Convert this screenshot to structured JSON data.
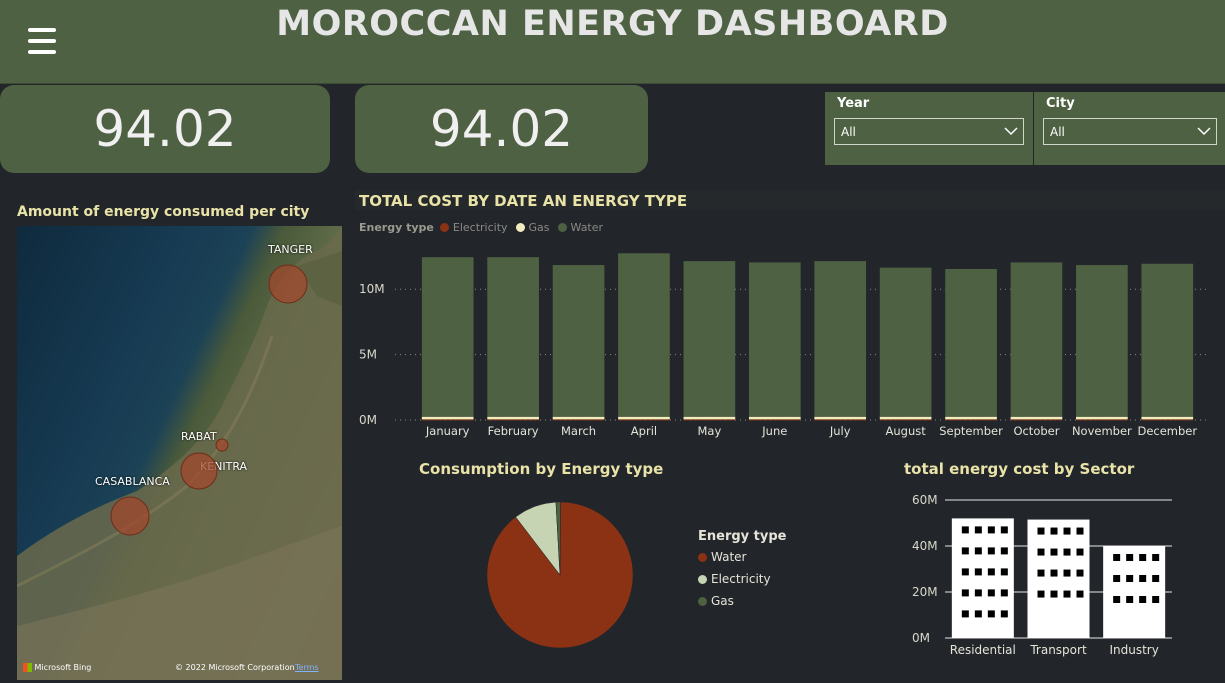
{
  "header": {
    "title": "MOROCCAN ENERGY DASHBOARD",
    "menu_icon": "hamburger-menu-icon"
  },
  "kpis": [
    {
      "value": "94.02"
    },
    {
      "value": "94.02"
    }
  ],
  "slicers": [
    {
      "label": "Year",
      "selected": "All"
    },
    {
      "label": "City",
      "selected": "All"
    }
  ],
  "map": {
    "title": "Amount of energy consumed per city",
    "cities": [
      "TANGER",
      "RABAT",
      "KENITRA",
      "CASABLANCA"
    ],
    "bubble_color": "#a0482c",
    "attribution": {
      "bing": "Microsoft Bing",
      "copyright": "© 2022 Microsoft Corporation",
      "terms": "Terms"
    }
  },
  "colors": {
    "header": "#4e6142",
    "water": "#4e6142",
    "electricity": "#8b3214",
    "gas": "#f1ecbd",
    "title_text": "#e9e3a8"
  },
  "chart_data": [
    {
      "type": "bar",
      "title": "TOTAL COST BY DATE AN ENERGY TYPE",
      "legend_title": "Energy type",
      "legend_placement": "top-left",
      "categories": [
        "January",
        "February",
        "March",
        "April",
        "May",
        "June",
        "July",
        "August",
        "September",
        "October",
        "November",
        "December"
      ],
      "series": [
        {
          "name": "Electricity",
          "color": "#8b3214",
          "values": [
            0.05,
            0.05,
            0.05,
            0.05,
            0.05,
            0.05,
            0.05,
            0.05,
            0.05,
            0.05,
            0.05,
            0.05
          ]
        },
        {
          "name": "Gas",
          "color": "#f1ecbd",
          "values": [
            0.2,
            0.2,
            0.2,
            0.2,
            0.2,
            0.2,
            0.2,
            0.2,
            0.2,
            0.2,
            0.2,
            0.2
          ]
        },
        {
          "name": "Water",
          "color": "#4e6142",
          "values": [
            12.2,
            12.2,
            11.6,
            12.5,
            11.9,
            11.8,
            11.9,
            11.4,
            11.3,
            11.8,
            11.6,
            11.7
          ]
        }
      ],
      "yticks": [
        "0M",
        "5M",
        "10M"
      ],
      "ylim": [
        0,
        13
      ],
      "grid": "dotted"
    },
    {
      "type": "pie",
      "title": "Consumption by Energy type",
      "legend_title": "Energy type",
      "legend_placement": "right",
      "labels": [
        "Water",
        "Electricity",
        "Gas"
      ],
      "values": [
        89.5,
        9.5,
        1.0
      ],
      "colors": [
        "#8b3214",
        "#c7d4b3",
        "#4e6142"
      ]
    },
    {
      "type": "bar",
      "title": "total energy cost by Sector",
      "categories": [
        "Residential",
        "Transport",
        "Industry"
      ],
      "values": [
        52,
        51.5,
        40
      ],
      "yticks": [
        "0M",
        "20M",
        "40M",
        "60M"
      ],
      "ylim": [
        0,
        60
      ],
      "grid": "solid"
    }
  ]
}
